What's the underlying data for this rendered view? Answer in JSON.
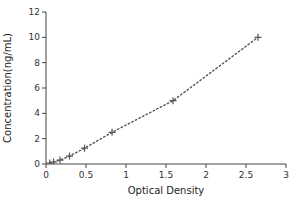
{
  "chart_data": {
    "type": "line",
    "x": [
      0.047,
      0.094,
      0.175,
      0.294,
      0.482,
      0.826,
      1.588,
      2.65
    ],
    "values": [
      0.078,
      0.156,
      0.312,
      0.625,
      1.25,
      2.5,
      5.0,
      10.0
    ],
    "xlabel": "Optical Density",
    "ylabel": "Concentration(ng/mL)",
    "xlim": [
      0,
      3
    ],
    "ylim": [
      0,
      12
    ],
    "xticks": [
      0,
      0.5,
      1,
      1.5,
      2,
      2.5,
      3
    ],
    "yticks": [
      0,
      2,
      4,
      6,
      8,
      10,
      12
    ],
    "color": "#555555",
    "marker": "plus",
    "line_style": "dotted",
    "grid": false
  }
}
